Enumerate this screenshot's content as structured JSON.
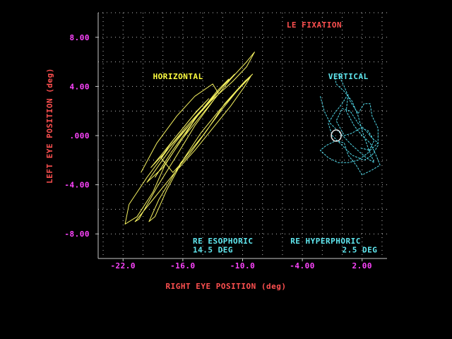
{
  "colors": {
    "background": "#000000",
    "axis": "#c8c8c8",
    "grid": "#bdbdbd",
    "text_red": "#ff5050",
    "text_yellow": "#ffff40",
    "text_cyan": "#60e8f0",
    "text_magenta": "#ff44ff",
    "series_horizontal": "#f4f060",
    "series_vertical": "#50d8e8",
    "fixation_marker": "#e6e6e6"
  },
  "chart_data": {
    "type": "line",
    "title": "LE FIXATION",
    "xlabel": "RIGHT EYE POSITION (deg)",
    "ylabel": "LEFT EYE POSITION (deg)",
    "xlim": [
      -24.5,
      4.5
    ],
    "ylim": [
      -10.0,
      10.0
    ],
    "grid": true,
    "x_ticks": [
      {
        "value": -22.0,
        "label": "-22.0"
      },
      {
        "value": -16.0,
        "label": "-16.0"
      },
      {
        "value": -10.0,
        "label": "-10.0"
      },
      {
        "value": -4.0,
        "label": "-4.00"
      },
      {
        "value": 2.0,
        "label": "2.00"
      }
    ],
    "y_ticks": [
      {
        "value": 8.0,
        "label": "8.00"
      },
      {
        "value": 4.0,
        "label": "4.00"
      },
      {
        "value": 0.0,
        "label": ".000"
      },
      {
        "value": -4.0,
        "label": "-4.00"
      },
      {
        "value": -8.0,
        "label": "-8.00"
      }
    ],
    "series": [
      {
        "name": "HORIZONTAL",
        "points": [
          [
            -20.2,
            -3.0
          ],
          [
            -18.6,
            -0.6
          ],
          [
            -16.6,
            1.6
          ],
          [
            -14.8,
            3.2
          ],
          [
            -13.0,
            4.2
          ],
          [
            -12.4,
            3.4
          ],
          [
            -14.4,
            1.4
          ],
          [
            -16.2,
            -0.4
          ],
          [
            -17.8,
            -2.4
          ],
          [
            -19.0,
            -4.6
          ],
          [
            -20.6,
            -6.6
          ],
          [
            -21.8,
            -7.2
          ],
          [
            -21.4,
            -5.6
          ],
          [
            -19.6,
            -3.4
          ],
          [
            -17.4,
            -1.0
          ],
          [
            -15.2,
            1.0
          ],
          [
            -13.2,
            2.8
          ],
          [
            -11.0,
            4.4
          ],
          [
            -9.6,
            5.6
          ],
          [
            -8.8,
            6.8
          ],
          [
            -9.6,
            6.0
          ],
          [
            -11.2,
            4.6
          ],
          [
            -12.8,
            3.0
          ],
          [
            -14.8,
            0.8
          ],
          [
            -16.6,
            -1.6
          ],
          [
            -18.6,
            -4.2
          ],
          [
            -20.4,
            -6.8
          ],
          [
            -20.8,
            -7.0
          ],
          [
            -19.0,
            -5.2
          ],
          [
            -16.8,
            -3.0
          ],
          [
            -14.8,
            -1.2
          ],
          [
            -13.0,
            0.6
          ],
          [
            -11.2,
            2.4
          ],
          [
            -9.8,
            4.0
          ],
          [
            -9.2,
            4.8
          ],
          [
            -10.6,
            3.6
          ],
          [
            -12.4,
            2.0
          ],
          [
            -14.2,
            0.2
          ],
          [
            -16.0,
            -2.0
          ],
          [
            -17.6,
            -4.4
          ],
          [
            -18.8,
            -6.6
          ],
          [
            -19.4,
            -7.0
          ],
          [
            -18.4,
            -5.2
          ],
          [
            -16.2,
            -2.2
          ],
          [
            -14.0,
            0.0
          ],
          [
            -12.0,
            2.2
          ],
          [
            -10.4,
            3.8
          ],
          [
            -9.0,
            5.0
          ],
          [
            -9.8,
            4.4
          ],
          [
            -11.8,
            2.6
          ],
          [
            -13.6,
            0.4
          ],
          [
            -15.4,
            -1.6
          ],
          [
            -17.0,
            -3.0
          ],
          [
            -18.2,
            -1.8
          ],
          [
            -17.0,
            -0.4
          ],
          [
            -15.0,
            1.6
          ],
          [
            -13.4,
            3.0
          ],
          [
            -14.6,
            2.0
          ],
          [
            -16.4,
            0.2
          ],
          [
            -18.0,
            -1.4
          ],
          [
            -19.2,
            -2.6
          ],
          [
            -17.6,
            -1.2
          ],
          [
            -15.8,
            0.6
          ],
          [
            -14.0,
            2.2
          ],
          [
            -12.6,
            3.6
          ],
          [
            -11.4,
            4.6
          ],
          [
            -12.8,
            3.2
          ],
          [
            -14.8,
            1.4
          ],
          [
            -16.8,
            -0.6
          ],
          [
            -18.4,
            -2.4
          ],
          [
            -19.6,
            -3.8
          ],
          [
            -18.0,
            -2.6
          ],
          [
            -16.0,
            -0.2
          ],
          [
            -14.4,
            1.8
          ],
          [
            -12.2,
            3.8
          ],
          [
            -10.8,
            5.0
          ],
          [
            -12.0,
            4.0
          ],
          [
            -13.8,
            2.4
          ],
          [
            -15.6,
            0.4
          ],
          [
            -17.2,
            -1.4
          ],
          [
            -18.8,
            -3.4
          ]
        ]
      },
      {
        "name": "VERTICAL",
        "points": [
          [
            -2.2,
            3.2
          ],
          [
            -1.8,
            2.0
          ],
          [
            -1.2,
            1.0
          ],
          [
            -0.2,
            0.2
          ],
          [
            1.0,
            -0.8
          ],
          [
            2.4,
            -1.8
          ],
          [
            3.2,
            -2.2
          ],
          [
            2.6,
            -1.0
          ],
          [
            2.0,
            0.4
          ],
          [
            1.6,
            1.6
          ],
          [
            1.0,
            2.8
          ],
          [
            0.2,
            3.6
          ],
          [
            -0.6,
            4.2
          ],
          [
            -0.8,
            5.0
          ],
          [
            -0.4,
            5.0
          ],
          [
            0.2,
            4.0
          ],
          [
            0.8,
            2.8
          ],
          [
            1.6,
            1.8
          ],
          [
            2.2,
            2.6
          ],
          [
            2.8,
            2.6
          ],
          [
            3.0,
            1.6
          ],
          [
            3.6,
            0.6
          ],
          [
            3.6,
            -0.8
          ],
          [
            3.0,
            -1.6
          ],
          [
            2.2,
            -2.0
          ],
          [
            1.0,
            -1.6
          ],
          [
            0.0,
            -0.8
          ],
          [
            -1.0,
            0.0
          ],
          [
            -1.4,
            1.0
          ],
          [
            -0.8,
            1.8
          ],
          [
            0.0,
            2.6
          ],
          [
            0.6,
            3.4
          ],
          [
            0.4,
            2.0
          ],
          [
            1.2,
            0.8
          ],
          [
            2.0,
            0.0
          ],
          [
            2.8,
            -0.6
          ],
          [
            3.4,
            -1.6
          ],
          [
            3.8,
            -2.4
          ],
          [
            3.0,
            -2.8
          ],
          [
            2.0,
            -3.2
          ],
          [
            1.4,
            -2.4
          ],
          [
            0.6,
            -1.6
          ],
          [
            0.2,
            -0.6
          ],
          [
            -0.6,
            -0.4
          ],
          [
            -1.6,
            -0.8
          ],
          [
            -2.2,
            -1.2
          ],
          [
            -1.4,
            -1.8
          ],
          [
            -0.4,
            -2.2
          ],
          [
            0.6,
            -2.2
          ],
          [
            1.6,
            -2.0
          ],
          [
            2.6,
            -1.4
          ],
          [
            3.2,
            -0.4
          ],
          [
            2.6,
            0.4
          ],
          [
            1.8,
            0.6
          ],
          [
            1.0,
            0.2
          ],
          [
            0.2,
            0.0
          ],
          [
            -0.6,
            1.2
          ],
          [
            0.0,
            2.2
          ],
          [
            0.8,
            2.0
          ],
          [
            1.6,
            1.0
          ],
          [
            2.4,
            0.4
          ],
          [
            3.0,
            -0.2
          ],
          [
            3.6,
            -0.6
          ],
          [
            2.8,
            -1.2
          ],
          [
            1.8,
            -1.0
          ]
        ]
      }
    ],
    "fixation_marker": {
      "x": -0.6,
      "y": 0.0
    },
    "annotations": [
      {
        "text": "HORIZONTAL",
        "x": -19.0,
        "y": 4.6,
        "color": "yellow"
      },
      {
        "text": "VERTICAL",
        "x": -1.4,
        "y": 4.6,
        "color": "cyan"
      },
      {
        "text": "RE ESOPHORIC",
        "x": -15.0,
        "y": -8.8,
        "color": "cyan"
      },
      {
        "text": "14.5 DEG",
        "x": -15.0,
        "y": -9.5,
        "color": "cyan"
      },
      {
        "text": "RE HYPERPHORIC",
        "x": -5.2,
        "y": -8.8,
        "color": "cyan"
      },
      {
        "text": "2.5 DEG",
        "x": 0.0,
        "y": -9.5,
        "color": "cyan"
      }
    ]
  }
}
